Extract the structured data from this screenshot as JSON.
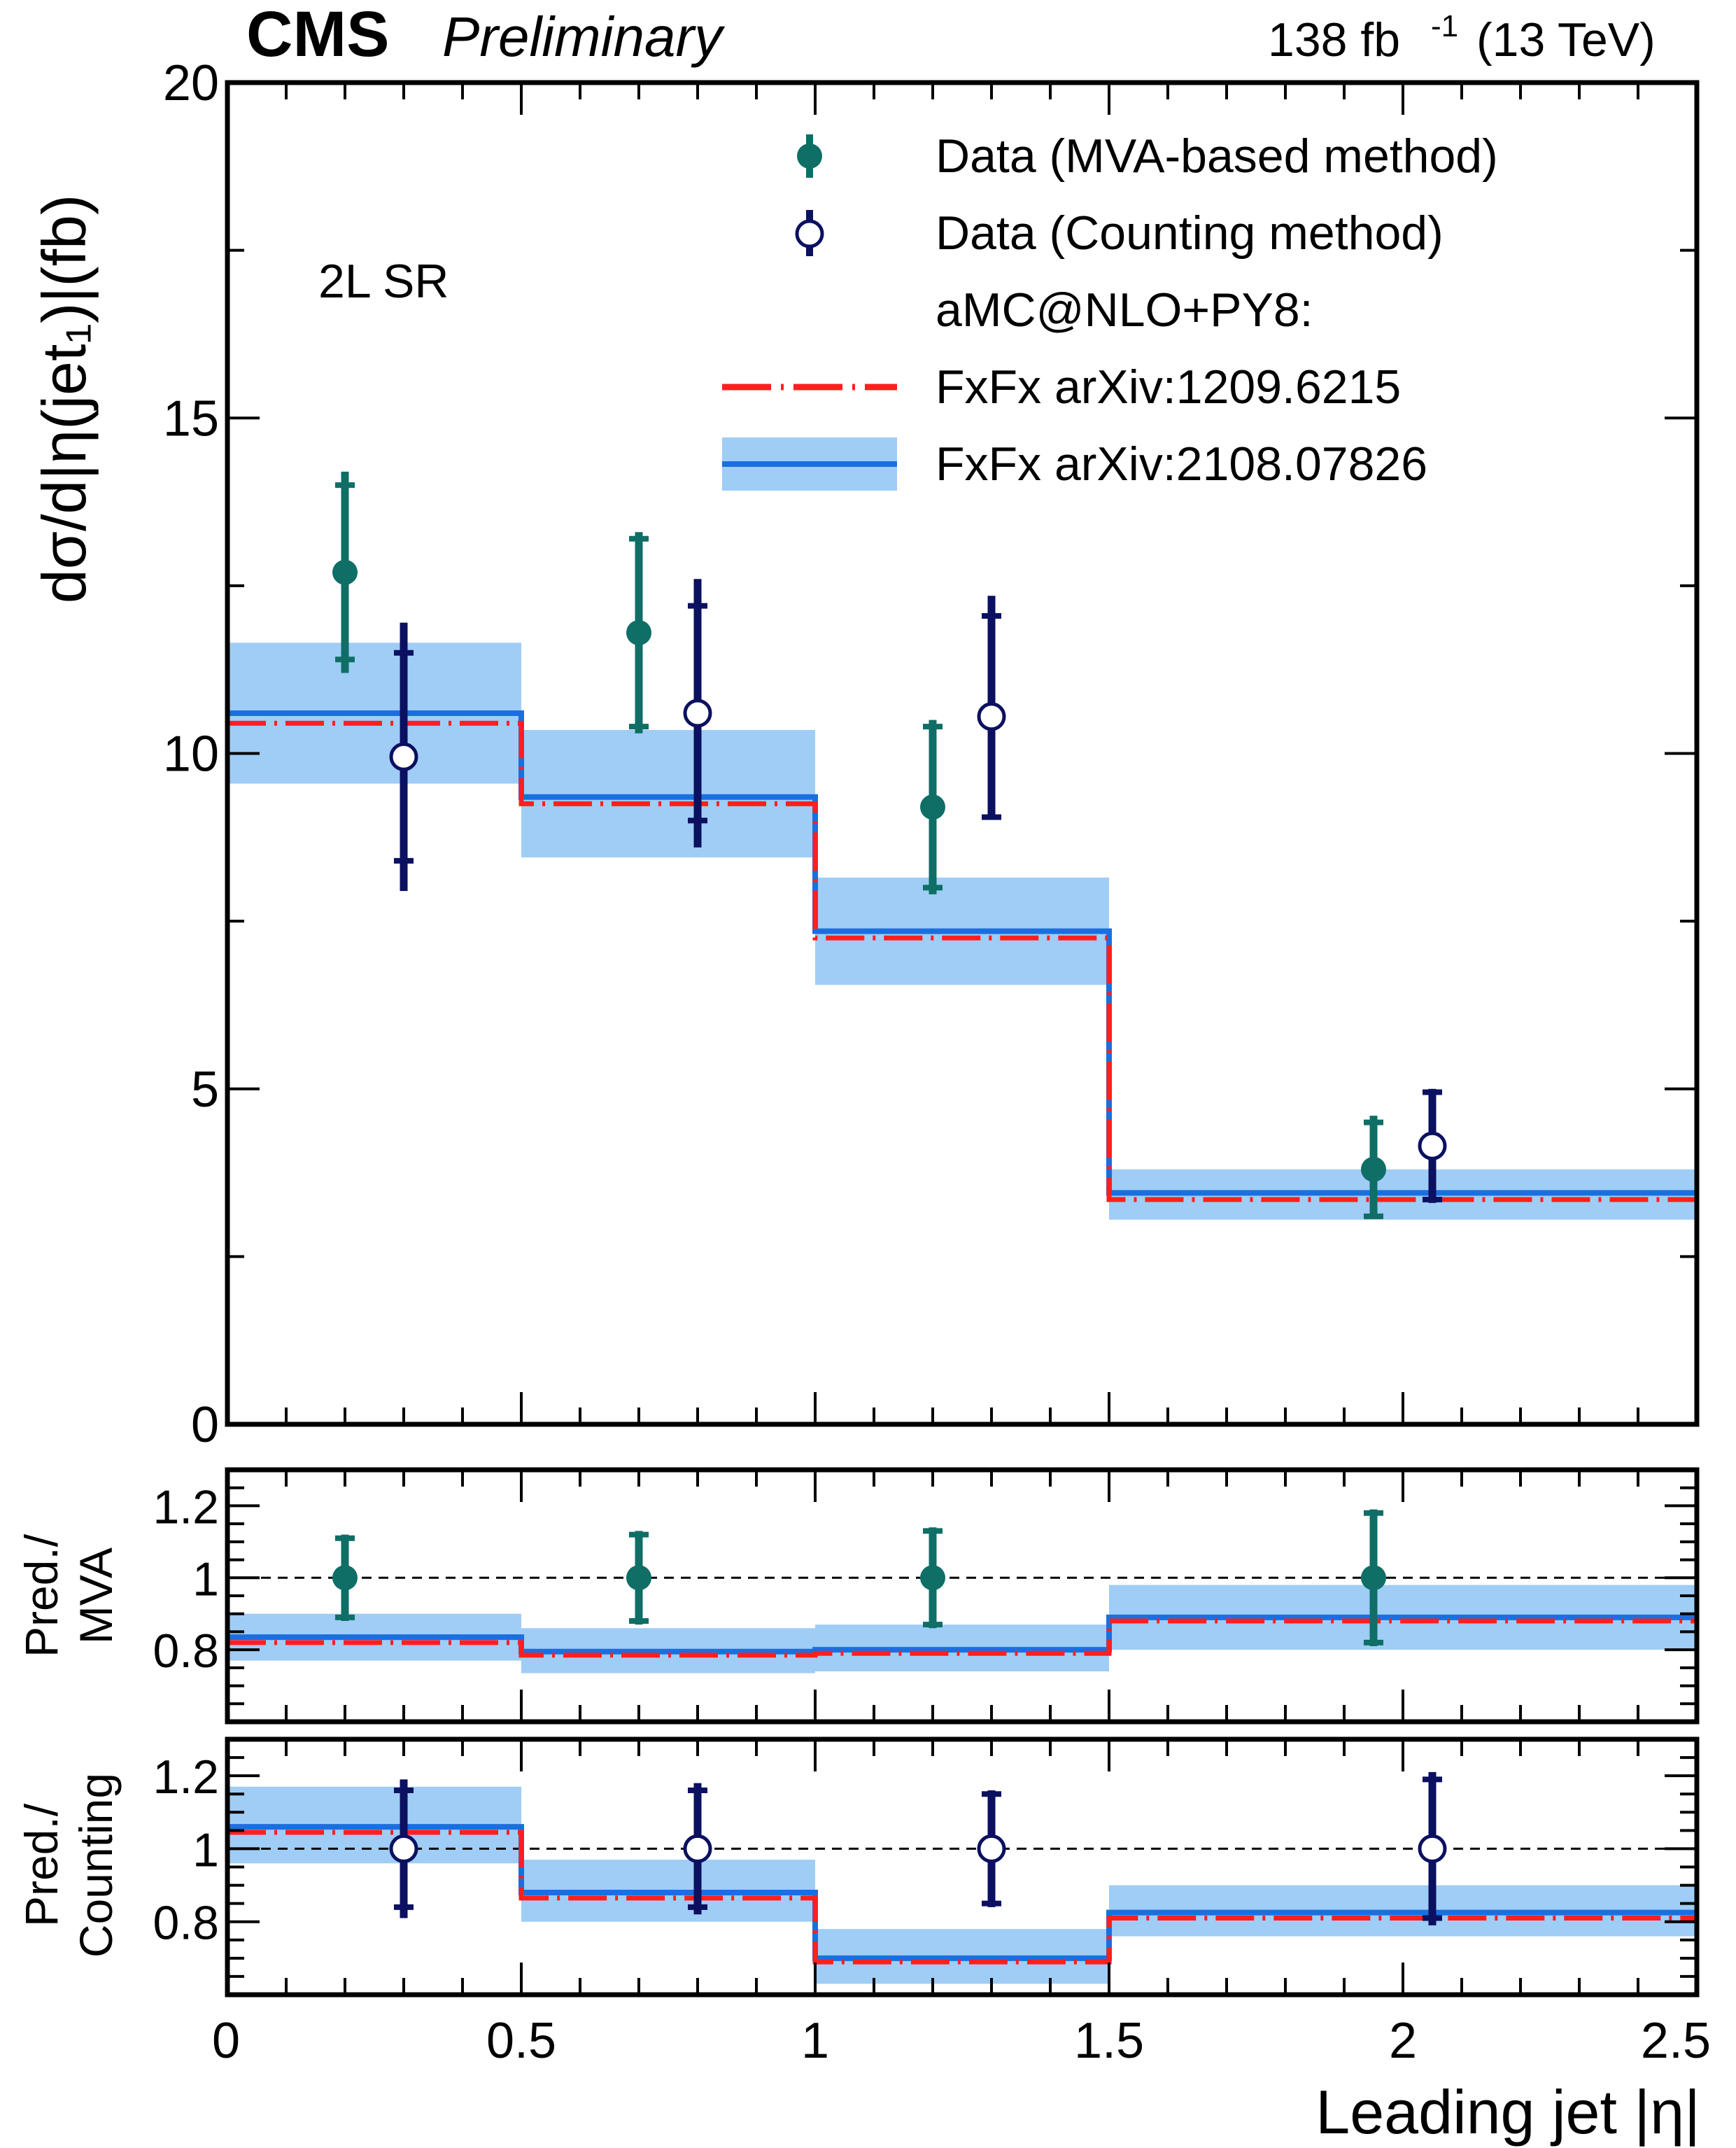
{
  "header": {
    "experiment": "CMS",
    "status": "Preliminary",
    "lumi": "138 fb",
    "lumi_exponent": "-1",
    "energy": "(13 TeV)"
  },
  "region_label": "2L SR",
  "legend": {
    "mva": "Data (MVA-based method)",
    "counting": "Data (Counting method)",
    "generator": "aMC@NLO+PY8:",
    "pred_old": "FxFx arXiv:1209.6215",
    "pred_new": "FxFx arXiv:2108.07826"
  },
  "axes": {
    "main_ylabel": "dσ/d|η(jet₁)|(fb)",
    "mva_ratio_ylabel_line1": "Pred./",
    "mva_ratio_ylabel_line2": "MVA",
    "count_ratio_ylabel_line1": "Pred./",
    "count_ratio_ylabel_line2": "Counting",
    "xlabel": "Leading jet |η|"
  },
  "colors": {
    "mva": "#0f6e66",
    "counting": "#0b1060",
    "pred_old": "#ff1f1f",
    "pred_new": "#1a6fe0",
    "band": "#9fcdf6"
  },
  "chart_data": [
    {
      "type": "line",
      "panel": "main",
      "xlim": [
        0,
        2.5
      ],
      "ylim": [
        0,
        20
      ],
      "y_ticks": [
        0,
        5,
        10,
        15,
        20
      ],
      "bin_edges": [
        0,
        0.5,
        1.0,
        1.5,
        2.5
      ],
      "series": [
        {
          "name": "Data (MVA-based method)",
          "x": [
            0.2,
            0.7,
            1.2,
            1.95
          ],
          "y": [
            12.7,
            11.8,
            9.2,
            3.8
          ],
          "err_lo": [
            1.5,
            1.5,
            1.3,
            0.7
          ],
          "err_hi": [
            1.5,
            1.5,
            1.3,
            0.8
          ],
          "syst": [
            1.3,
            1.4,
            1.2,
            0.7
          ]
        },
        {
          "name": "Data (Counting method)",
          "x": [
            0.3,
            0.8,
            1.3,
            2.05
          ],
          "y": [
            9.95,
            10.6,
            10.55,
            4.15
          ],
          "err_lo": [
            2.0,
            2.0,
            1.5,
            0.85
          ],
          "err_hi": [
            2.0,
            2.0,
            1.8,
            0.85
          ],
          "syst": [
            1.55,
            1.6,
            1.5,
            0.8
          ]
        },
        {
          "name": "FxFx arXiv:1209.6215",
          "values": [
            10.45,
            9.25,
            7.25,
            3.35
          ]
        },
        {
          "name": "FxFx arXiv:2108.07826",
          "values": [
            10.6,
            9.35,
            7.35,
            3.45
          ],
          "band_lo": [
            9.55,
            8.45,
            6.55,
            3.05
          ],
          "band_hi": [
            11.65,
            10.35,
            8.15,
            3.8
          ]
        }
      ]
    },
    {
      "type": "line",
      "panel": "ratio-mva",
      "ylabel": "Pred./ MVA",
      "ylim": [
        0.6,
        1.3
      ],
      "y_ticks": [
        0.8,
        1.0,
        1.2
      ],
      "y_tick_labels": [
        "0.8",
        "1",
        "1.2"
      ],
      "reference": 1.0,
      "series": [
        {
          "name": "Data (MVA-based method)",
          "x": [
            0.2,
            0.7,
            1.2,
            1.95
          ],
          "y": [
            1,
            1,
            1,
            1
          ],
          "err": [
            0.12,
            0.13,
            0.14,
            0.19
          ],
          "syst": [
            0.11,
            0.12,
            0.13,
            0.18
          ]
        },
        {
          "name": "FxFx arXiv:1209.6215",
          "values": [
            0.82,
            0.785,
            0.79,
            0.88
          ]
        },
        {
          "name": "FxFx arXiv:2108.07826",
          "values": [
            0.835,
            0.795,
            0.8,
            0.89
          ],
          "band_lo": [
            0.77,
            0.735,
            0.74,
            0.8
          ],
          "band_hi": [
            0.9,
            0.86,
            0.87,
            0.98
          ]
        }
      ]
    },
    {
      "type": "line",
      "panel": "ratio-counting",
      "ylabel": "Pred./ Counting",
      "ylim": [
        0.6,
        1.3
      ],
      "y_ticks": [
        0.8,
        1.0,
        1.2
      ],
      "y_tick_labels": [
        "0.8",
        "1",
        "1.2"
      ],
      "reference": 1.0,
      "xlabel": "Leading jet |η|",
      "x_ticks": [
        0,
        0.5,
        1,
        1.5,
        2,
        2.5
      ],
      "x_tick_labels": [
        "0",
        "0.5",
        "1",
        "1.5",
        "2",
        "2.5"
      ],
      "series": [
        {
          "name": "Data (Counting method)",
          "x": [
            0.3,
            0.8,
            1.3,
            2.05
          ],
          "y": [
            1,
            1,
            1,
            1
          ],
          "err": [
            0.19,
            0.18,
            0.16,
            0.21
          ],
          "syst": [
            0.16,
            0.16,
            0.15,
            0.19
          ]
        },
        {
          "name": "FxFx arXiv:1209.6215",
          "values": [
            1.045,
            0.865,
            0.69,
            0.81
          ]
        },
        {
          "name": "FxFx arXiv:2108.07826",
          "values": [
            1.06,
            0.88,
            0.7,
            0.825
          ],
          "band_lo": [
            0.96,
            0.8,
            0.63,
            0.76
          ],
          "band_hi": [
            1.17,
            0.97,
            0.78,
            0.9
          ]
        }
      ]
    }
  ]
}
